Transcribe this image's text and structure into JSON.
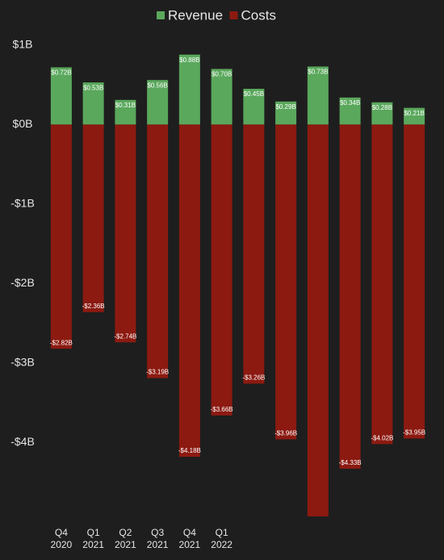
{
  "chart_data": {
    "type": "bar",
    "categories": [
      "Q4 2020",
      "Q1 2021",
      "Q2 2021",
      "Q3 2021",
      "Q4 2021",
      "Q1 2022",
      null,
      null,
      null,
      null,
      null,
      null
    ],
    "series": [
      {
        "name": "Revenue",
        "color": "#5aa85c",
        "values": [
          0.72,
          0.53,
          0.31,
          0.56,
          0.88,
          0.7,
          0.45,
          0.29,
          0.73,
          0.34,
          0.28,
          0.21
        ],
        "value_labels": [
          "$0.72B",
          "$0.53B",
          "$0.31B",
          "$0.56B",
          "$0.88B",
          "$0.70B",
          "$0.45B",
          "$0.29B",
          "$0.73B",
          "$0.34B",
          "$0.28B",
          "$0.21B"
        ]
      },
      {
        "name": "Costs",
        "color": "#8c1a11",
        "values": [
          -2.82,
          -2.36,
          -2.74,
          -3.19,
          -4.18,
          -3.66,
          -3.26,
          -3.96,
          -4.95,
          -4.33,
          -4.02,
          -3.95
        ],
        "value_labels": [
          "-$2.82B",
          "-$2.36B",
          "-$2.74B",
          "-$3.19B",
          "-$4.18B",
          "-$3.66B",
          "-$3.26B",
          "-$3.96B",
          null,
          "-$4.33B",
          "-$4.02B",
          "-$3.95B"
        ]
      }
    ],
    "ylim": [
      -4.93,
      1.1
    ],
    "yticks": [
      {
        "value": 1,
        "label": "$1B"
      },
      {
        "value": 0,
        "label": "$0B"
      },
      {
        "value": -1,
        "label": "-$1B"
      },
      {
        "value": -2,
        "label": "-$2B"
      },
      {
        "value": -3,
        "label": "-$3B"
      },
      {
        "value": -4,
        "label": "-$4B"
      }
    ],
    "legend": "top"
  }
}
